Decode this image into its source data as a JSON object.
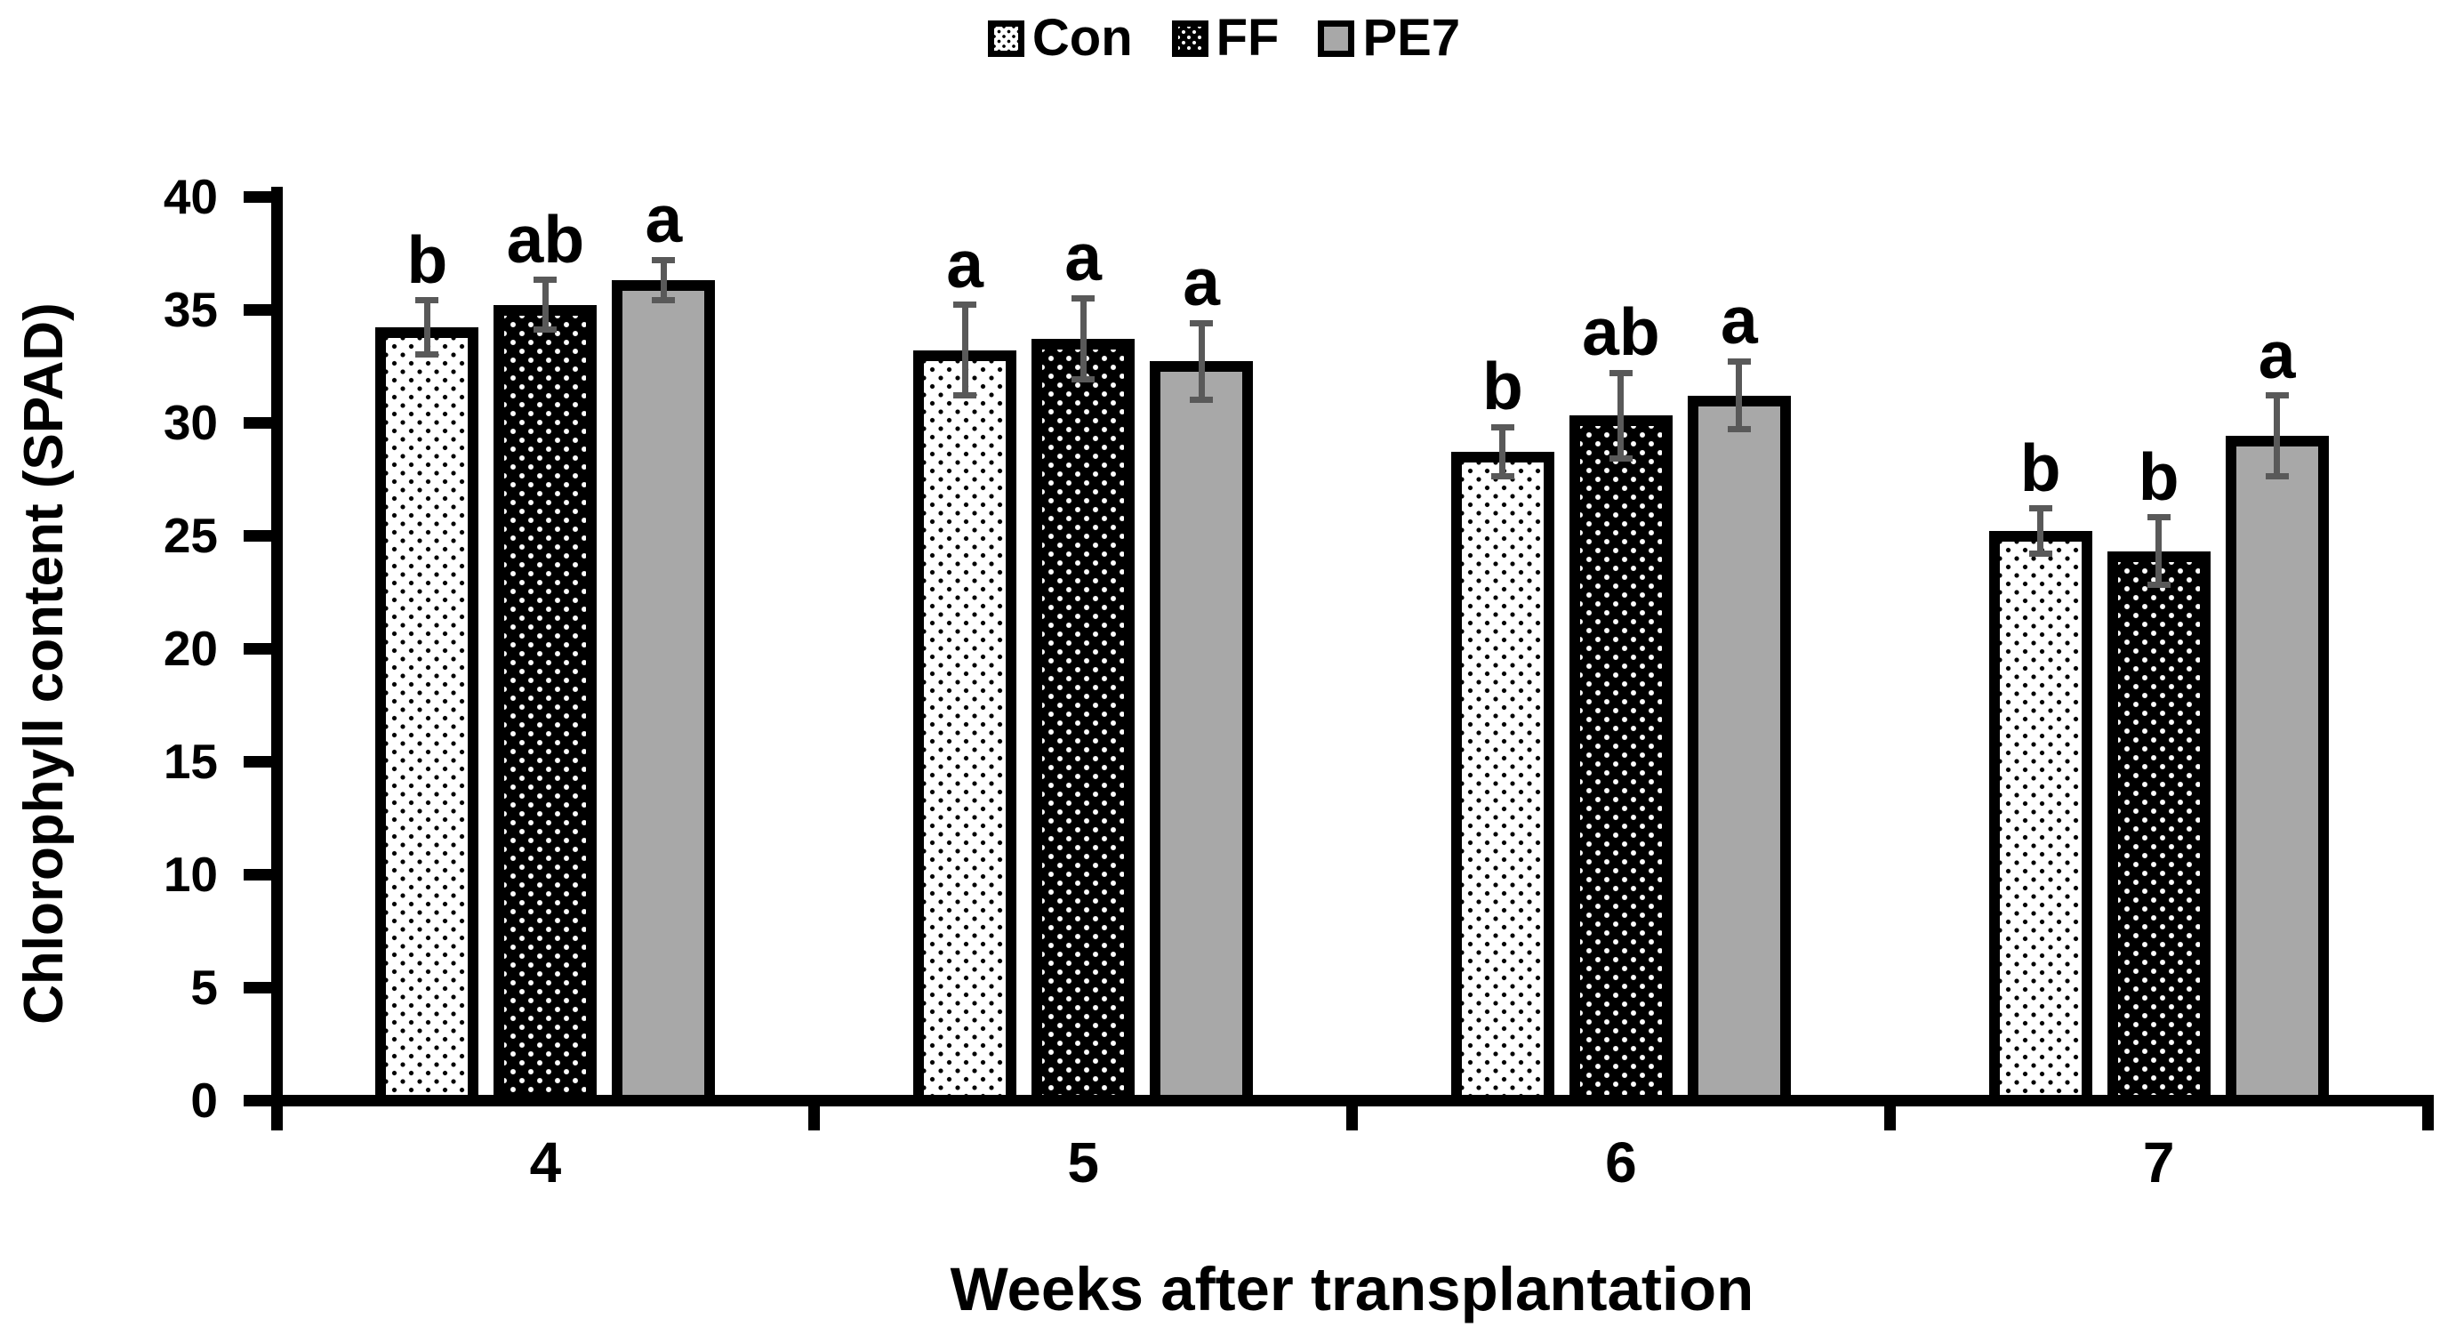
{
  "chart_data": {
    "type": "bar",
    "title": "",
    "xlabel": "Weeks after transplantation",
    "ylabel": "Chlorophyll content (SPAD)",
    "categories": [
      "4",
      "5",
      "6",
      "7"
    ],
    "series": [
      {
        "name": "Con",
        "pattern": "black-dots-on-white",
        "fill": "#ffffff",
        "values": [
          34.2,
          33.2,
          28.7,
          25.2
        ],
        "errors": [
          1.2,
          2.0,
          1.1,
          1.0
        ],
        "sig_letters": [
          "b",
          "a",
          "b",
          "b"
        ]
      },
      {
        "name": "FF",
        "pattern": "white-dots-on-black",
        "fill": "#000000",
        "values": [
          35.2,
          33.7,
          30.3,
          24.3
        ],
        "errors": [
          1.1,
          1.8,
          1.9,
          1.5
        ],
        "sig_letters": [
          "ab",
          "a",
          "ab",
          "b"
        ]
      },
      {
        "name": "PE7",
        "pattern": "solid-gray",
        "fill": "#a8a8a8",
        "values": [
          36.3,
          32.7,
          31.2,
          29.4
        ],
        "errors": [
          0.9,
          1.7,
          1.5,
          1.8
        ],
        "sig_letters": [
          "a",
          "a",
          "a",
          "a"
        ]
      }
    ],
    "ylim": [
      0,
      40
    ],
    "yticks": [
      0,
      5,
      10,
      15,
      20,
      25,
      30,
      35,
      40
    ],
    "grid": false,
    "legend_position": "top-center",
    "axis_color": "#000000",
    "error_bar_color": "#595959",
    "text_color": "#000000"
  }
}
